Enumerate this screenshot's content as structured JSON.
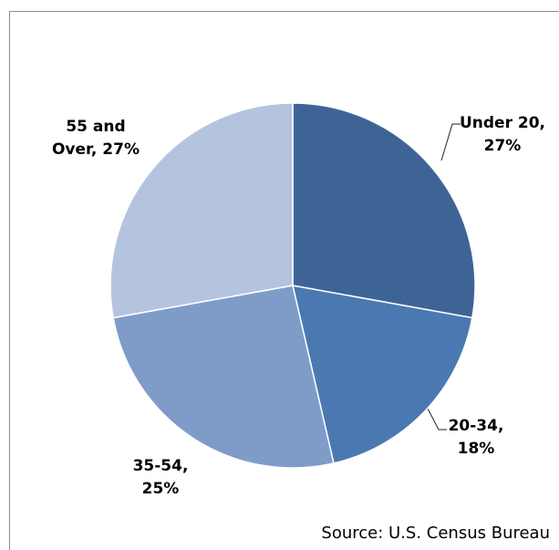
{
  "chart_data": {
    "type": "pie",
    "values": [
      27,
      18,
      25,
      27
    ],
    "value_labels": [
      "Under 20, 27%",
      "20-34, 18%",
      "35-54, 25%",
      "55 and Over, 27%"
    ],
    "colors": [
      "#3e6496",
      "#4a79b1",
      "#7f9cc9",
      "#b5c4de"
    ],
    "source": "Source: U.S. Census Bureau"
  }
}
